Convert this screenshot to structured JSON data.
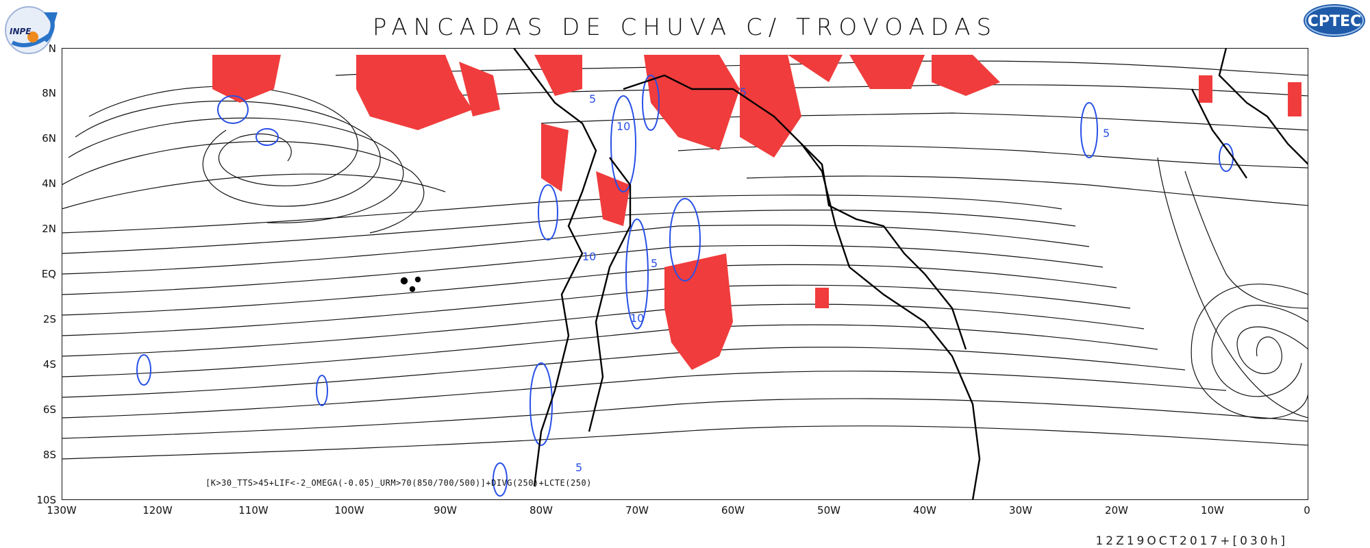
{
  "title": "PANCADAS DE CHUVA C/ TROVOADAS",
  "logos": {
    "left": "INPE",
    "right": "CPTEC"
  },
  "map": {
    "lon_labels": [
      "130W",
      "120W",
      "110W",
      "100W",
      "90W",
      "80W",
      "70W",
      "60W",
      "50W",
      "40W",
      "30W",
      "20W",
      "10W",
      "0"
    ],
    "lat_labels": [
      "10S",
      "8S",
      "6S",
      "4S",
      "2S",
      "EQ",
      "2N",
      "4N",
      "6N",
      "8N",
      "N"
    ],
    "lon_range": [
      -130,
      0
    ],
    "lat_range": [
      -10,
      10
    ],
    "colors": {
      "storm_fill": "#f03c3c",
      "contour": "#2850e6",
      "streamline": "#111111",
      "coast": "#000000"
    },
    "contour_labels": [
      "5",
      "10",
      "5",
      "10",
      "5",
      "5",
      "10",
      "5"
    ],
    "icons": [
      "inpe-logo-icon",
      "cptec-logo-icon"
    ]
  },
  "formula": "[K>30_TTS>45+LIF<-2_OMEGA(-0.05)_URM>70(850/700/500)]+DIVG(250)+LCTE(250)",
  "datetime": "12Z19OCT2017+[030h]"
}
